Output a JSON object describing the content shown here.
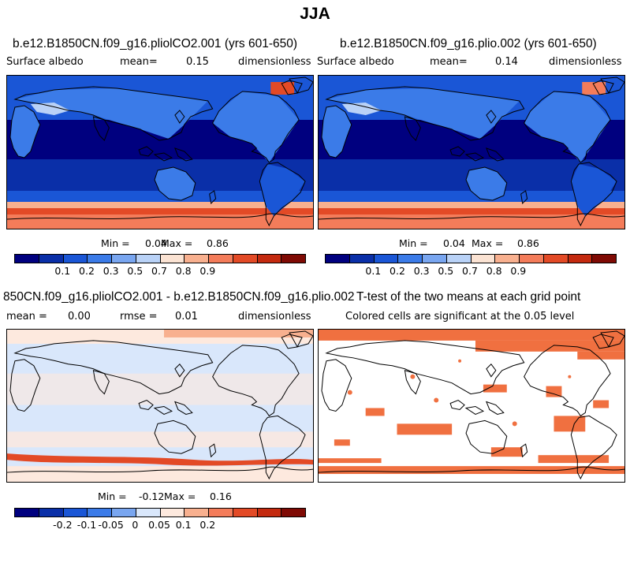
{
  "page_title": "JJA",
  "colors": {
    "albedo_scale": [
      "#00007f",
      "#0a2fa8",
      "#1a56d6",
      "#3b7be8",
      "#79a6f0",
      "#b9d2f7",
      "#fbe3d3",
      "#f8b08f",
      "#f47c5a",
      "#e34a26",
      "#c42a0f",
      "#7f0a04"
    ],
    "diff_scale": [
      "#00007f",
      "#0a2fa8",
      "#1a56d6",
      "#3b7be8",
      "#79a6f0",
      "#d9e7fb",
      "#fde9de",
      "#f8b08f",
      "#f47c5a",
      "#e34a26",
      "#c42a0f",
      "#7f0a04"
    ],
    "significance": "#f07040",
    "coastline": "#000000"
  },
  "panels": {
    "top_left": {
      "title": "b.e12.B1850CN.f09_g16.pliolCO2.001 (yrs 601-650)",
      "variable": "Surface albedo",
      "mean_label": "mean=",
      "mean_value": "0.15",
      "units": "dimensionless"
    },
    "top_right": {
      "title": "b.e12.B1850CN.f09_g16.plio.002 (yrs 601-650)",
      "variable": "Surface albedo",
      "mean_label": "mean=",
      "mean_value": "0.14",
      "units": "dimensionless"
    },
    "bottom_left": {
      "title": "850CN.f09_g16.pliolCO2.001 - b.e12.B1850CN.f09_g16.plio.002",
      "mean_label": "mean =",
      "mean_value": "0.00",
      "rmse_label": "rmse =",
      "rmse_value": "0.01",
      "units": "dimensionless"
    },
    "bottom_right": {
      "title": "T-test of the two means at each grid point",
      "subtitle": "Colored cells are significant at the 0.05 level"
    }
  },
  "colorbars": {
    "albedo": {
      "min_label": "Min =",
      "min_value": "0.04",
      "max_label": "Max =",
      "max_value": "0.86",
      "ticks": [
        "0.1",
        "0.2",
        "0.3",
        "0.5",
        "0.7",
        "0.8",
        "0.9"
      ]
    },
    "difference": {
      "min_label": "Min =",
      "min_value": "-0.12",
      "max_label": "Max =",
      "max_value": "0.16",
      "ticks": [
        "-0.2",
        "-0.1",
        "-0.05",
        "0",
        "0.05",
        "0.1",
        "0.2"
      ]
    }
  }
}
